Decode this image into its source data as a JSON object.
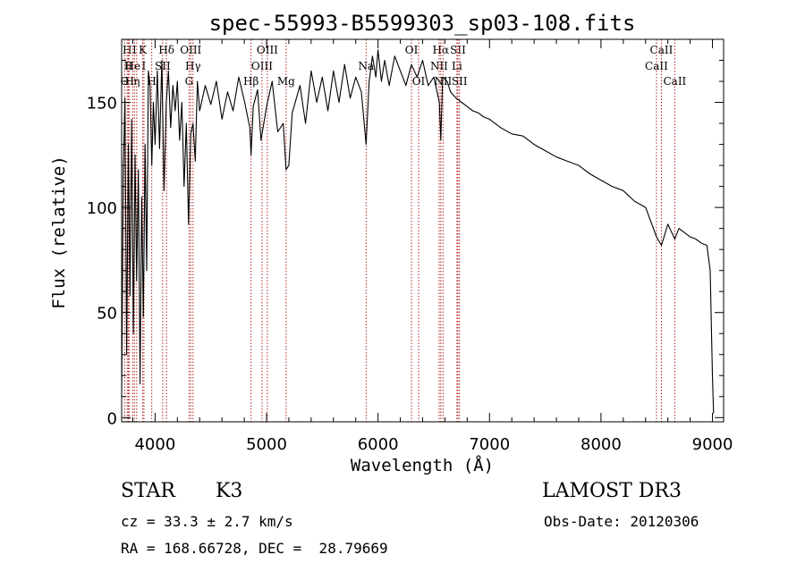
{
  "chart_data": {
    "type": "line",
    "title": "spec-55993-B5599303_sp03-108.fits",
    "xlabel": "Wavelength (Å)",
    "ylabel": "Flux (relative)",
    "xlim": [
      3700,
      9100
    ],
    "ylim": [
      -2,
      180
    ],
    "xticks": [
      4000,
      5000,
      6000,
      7000,
      8000,
      9000
    ],
    "yticks": [
      0,
      50,
      100,
      150
    ],
    "x_tick_labels": [
      "4000",
      "5000",
      "6000",
      "7000",
      "8000",
      "9000"
    ],
    "y_tick_labels": [
      "0",
      "50",
      "100",
      "150"
    ],
    "series": [
      {
        "name": "flux",
        "points": [
          [
            3700,
            10
          ],
          [
            3715,
            118
          ],
          [
            3730,
            152
          ],
          [
            3745,
            30
          ],
          [
            3760,
            130
          ],
          [
            3775,
            58
          ],
          [
            3790,
            142
          ],
          [
            3805,
            40
          ],
          [
            3820,
            125
          ],
          [
            3835,
            65
          ],
          [
            3850,
            118
          ],
          [
            3865,
            16
          ],
          [
            3880,
            105
          ],
          [
            3895,
            48
          ],
          [
            3910,
            130
          ],
          [
            3925,
            70
          ],
          [
            3940,
            165
          ],
          [
            3955,
            158
          ],
          [
            3970,
            120
          ],
          [
            3985,
            150
          ],
          [
            4000,
            130
          ],
          [
            4020,
            165
          ],
          [
            4040,
            128
          ],
          [
            4060,
            170
          ],
          [
            4080,
            108
          ],
          [
            4100,
            150
          ],
          [
            4120,
            165
          ],
          [
            4140,
            138
          ],
          [
            4160,
            158
          ],
          [
            4180,
            146
          ],
          [
            4200,
            160
          ],
          [
            4220,
            132
          ],
          [
            4240,
            150
          ],
          [
            4260,
            110
          ],
          [
            4280,
            140
          ],
          [
            4300,
            92
          ],
          [
            4320,
            135
          ],
          [
            4340,
            140
          ],
          [
            4360,
            122
          ],
          [
            4380,
            160
          ],
          [
            4400,
            146
          ],
          [
            4450,
            158
          ],
          [
            4500,
            149
          ],
          [
            4550,
            160
          ],
          [
            4600,
            142
          ],
          [
            4650,
            155
          ],
          [
            4700,
            146
          ],
          [
            4750,
            162
          ],
          [
            4800,
            151
          ],
          [
            4850,
            138
          ],
          [
            4861,
            125
          ],
          [
            4880,
            148
          ],
          [
            4920,
            156
          ],
          [
            4950,
            132
          ],
          [
            5000,
            148
          ],
          [
            5050,
            160
          ],
          [
            5100,
            136
          ],
          [
            5150,
            140
          ],
          [
            5175,
            118
          ],
          [
            5200,
            120
          ],
          [
            5230,
            145
          ],
          [
            5300,
            158
          ],
          [
            5350,
            140
          ],
          [
            5400,
            165
          ],
          [
            5450,
            150
          ],
          [
            5500,
            162
          ],
          [
            5550,
            146
          ],
          [
            5600,
            165
          ],
          [
            5650,
            150
          ],
          [
            5700,
            168
          ],
          [
            5750,
            152
          ],
          [
            5800,
            162
          ],
          [
            5850,
            155
          ],
          [
            5893,
            130
          ],
          [
            5920,
            160
          ],
          [
            5950,
            172
          ],
          [
            5980,
            162
          ],
          [
            6000,
            175
          ],
          [
            6030,
            160
          ],
          [
            6060,
            170
          ],
          [
            6100,
            158
          ],
          [
            6150,
            172
          ],
          [
            6200,
            165
          ],
          [
            6250,
            158
          ],
          [
            6300,
            168
          ],
          [
            6350,
            162
          ],
          [
            6400,
            170
          ],
          [
            6450,
            158
          ],
          [
            6500,
            162
          ],
          [
            6550,
            150
          ],
          [
            6563,
            132
          ],
          [
            6580,
            162
          ],
          [
            6620,
            160
          ],
          [
            6650,
            155
          ],
          [
            6700,
            152
          ],
          [
            6750,
            150
          ],
          [
            6800,
            148
          ],
          [
            6850,
            146
          ],
          [
            6900,
            145
          ],
          [
            6950,
            143
          ],
          [
            7000,
            142
          ],
          [
            7100,
            138
          ],
          [
            7200,
            135
          ],
          [
            7300,
            134
          ],
          [
            7400,
            130
          ],
          [
            7500,
            127
          ],
          [
            7600,
            124
          ],
          [
            7700,
            122
          ],
          [
            7800,
            120
          ],
          [
            7900,
            116
          ],
          [
            8000,
            113
          ],
          [
            8100,
            110
          ],
          [
            8200,
            108
          ],
          [
            8300,
            103
          ],
          [
            8400,
            100
          ],
          [
            8498,
            86
          ],
          [
            8542,
            82
          ],
          [
            8600,
            92
          ],
          [
            8662,
            85
          ],
          [
            8700,
            90
          ],
          [
            8800,
            86
          ],
          [
            8850,
            85
          ],
          [
            8900,
            83
          ],
          [
            8950,
            82
          ],
          [
            8980,
            70
          ],
          [
            9000,
            20
          ],
          [
            9010,
            2
          ]
        ]
      }
    ],
    "lines": [
      {
        "label": "O",
        "wl": 3727,
        "row": 2
      },
      {
        "label": "H",
        "wl": 3750,
        "row": 0
      },
      {
        "label": "II",
        "wl": 3760,
        "row": 1
      },
      {
        "label": "H",
        "wl": 3770,
        "row": 2
      },
      {
        "label": "He",
        "wl": 3799,
        "row": 1
      },
      {
        "label": "I",
        "wl": 3815,
        "row": 0
      },
      {
        "label": "η",
        "wl": 3835,
        "row": 2
      },
      {
        "label": "K",
        "wl": 3889,
        "row": 0
      },
      {
        "label": "I",
        "wl": 3900,
        "row": 1
      },
      {
        "label": "H",
        "wl": 3970,
        "row": 2
      },
      {
        "label": "SII",
        "wl": 4068,
        "row": 1
      },
      {
        "label": "Hδ",
        "wl": 4102,
        "row": 0
      },
      {
        "label": "OIII",
        "wl": 4320,
        "row": 0
      },
      {
        "label": "Hγ",
        "wl": 4340,
        "row": 1
      },
      {
        "label": "G",
        "wl": 4305,
        "row": 2
      },
      {
        "label": "Hβ",
        "wl": 4861,
        "row": 2
      },
      {
        "label": "OIII",
        "wl": 5007,
        "row": 0
      },
      {
        "label": "OIII",
        "wl": 4959,
        "row": 1
      },
      {
        "label": "Mg",
        "wl": 5175,
        "row": 2
      },
      {
        "label": "Na",
        "wl": 5893,
        "row": 1
      },
      {
        "label": "OI",
        "wl": 6300,
        "row": 0
      },
      {
        "label": "OI",
        "wl": 6364,
        "row": 2
      },
      {
        "label": "Hα",
        "wl": 6563,
        "row": 0
      },
      {
        "label": "NII",
        "wl": 6548,
        "row": 1
      },
      {
        "label": "NII",
        "wl": 6583,
        "row": 2
      },
      {
        "label": "SII",
        "wl": 6717,
        "row": 0
      },
      {
        "label": "Li",
        "wl": 6708,
        "row": 1
      },
      {
        "label": "SII",
        "wl": 6731,
        "row": 2
      },
      {
        "label": "CaII",
        "wl": 8542,
        "row": 0
      },
      {
        "label": "CaII",
        "wl": 8498,
        "row": 1
      },
      {
        "label": "CaII",
        "wl": 8662,
        "row": 2
      }
    ]
  },
  "info": {
    "object_class": "STAR",
    "subclass": "K3",
    "survey": "LAMOST DR3",
    "cz": "cz = 33.3 ± 2.7 km/s",
    "obs_date": "Obs-Date: 20120306",
    "coords": "RA = 168.66728, DEC =  28.79669"
  },
  "colors": {
    "axis": "#000000",
    "spectrum": "#000000",
    "line_marker": "#b22222"
  }
}
